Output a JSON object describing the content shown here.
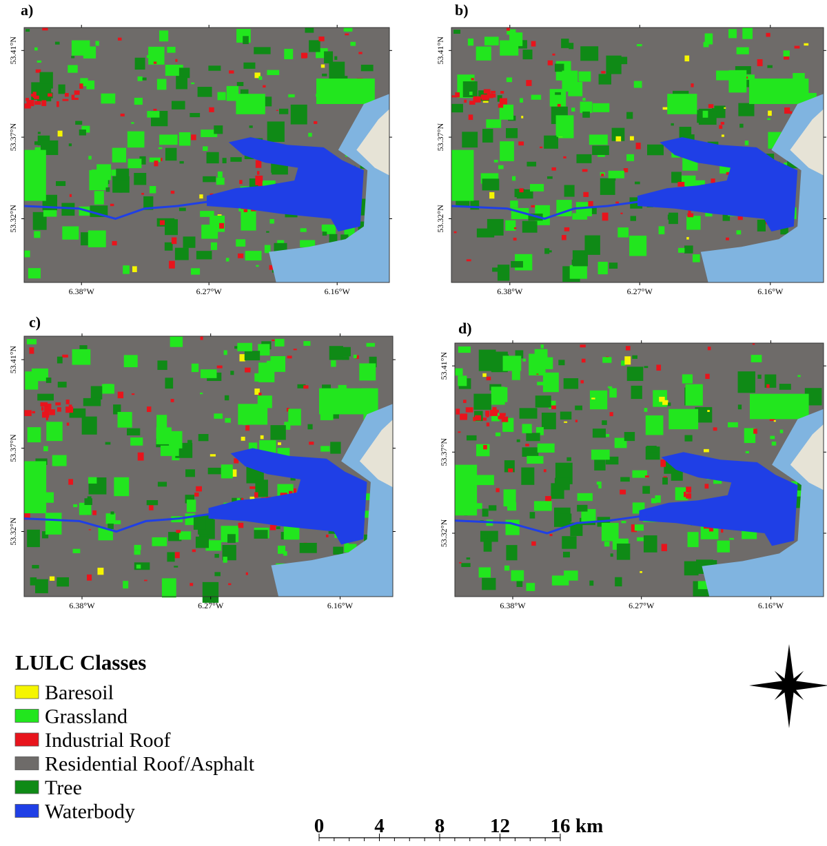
{
  "panels": [
    {
      "label": "a)"
    },
    {
      "label": "b)"
    },
    {
      "label": "c)"
    },
    {
      "label": "d)"
    }
  ],
  "latitude_ticks": [
    "53.41°N",
    "53.37°N",
    "53.32°N"
  ],
  "longitude_ticks": [
    "6.38°W",
    "6.27°W",
    "6.16°W"
  ],
  "legend": {
    "title": "LULC Classes",
    "classes": [
      {
        "name": "Baresoil",
        "color": "#f5f500"
      },
      {
        "name": "Grassland",
        "color": "#22e61e"
      },
      {
        "name": "Industrial Roof",
        "color": "#e8141c"
      },
      {
        "name": "Residential Roof/Asphalt",
        "color": "#6e6b69"
      },
      {
        "name": "Tree",
        "color": "#0f8a16"
      },
      {
        "name": "Waterbody",
        "color": "#1f3fe6"
      }
    ]
  },
  "scale_bar": {
    "ticks": [
      0,
      4,
      8,
      12,
      16
    ],
    "unit": "km"
  }
}
